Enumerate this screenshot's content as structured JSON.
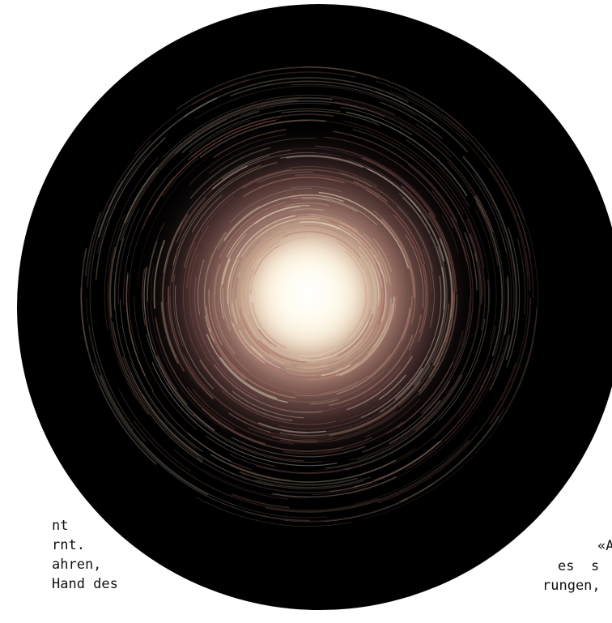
{
  "left_text": {
    "line1": "nt",
    "line2": "rnt.",
    "line3": "ahren,",
    "line4": "Hand des",
    "line5": ""
  },
  "right_text": {
    "line1": "«A",
    "line2": "es  s",
    "line3": "rungen,"
  },
  "colors": {
    "background": "#ffffff",
    "disk": "#000000",
    "core": "#fffdf2",
    "swirl_warm": "#b36a5e",
    "swirl_pale": "#e8d6b8",
    "text": "#111111"
  }
}
